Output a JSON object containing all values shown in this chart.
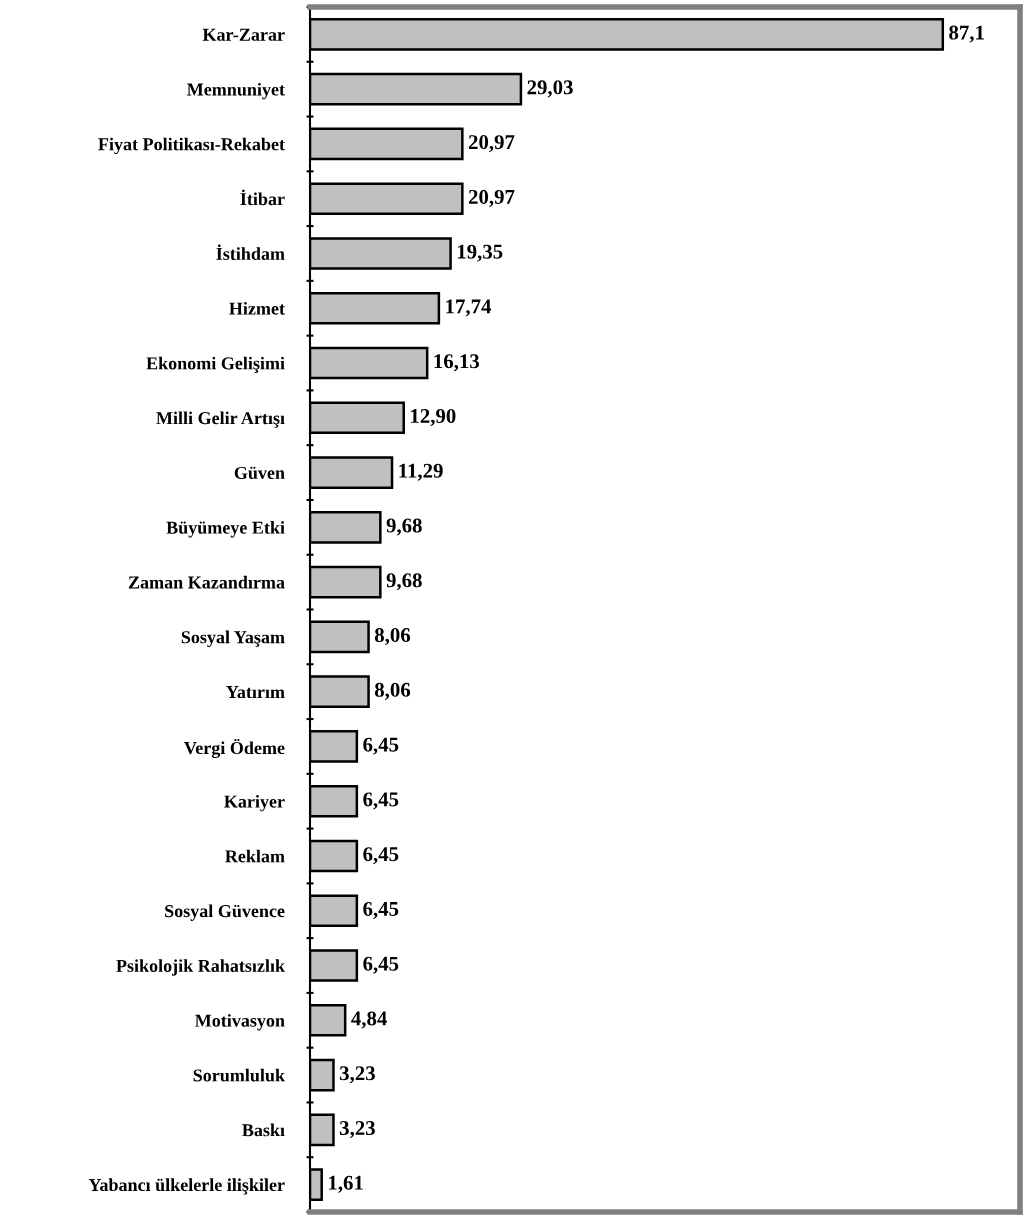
{
  "chart_data": {
    "type": "bar",
    "orientation": "horizontal",
    "categories": [
      "Kar-Zarar",
      "Memnuniyet",
      "Fiyat Politikası-Rekabet",
      "İtibar",
      "İstihdam",
      "Hizmet",
      "Ekonomi Gelişimi",
      "Milli Gelir Artışı",
      "Güven",
      "Büyümeye Etki",
      "Zaman Kazandırma",
      "Sosyal Yaşam",
      "Yatırım",
      "Vergi Ödeme",
      "Kariyer",
      "Reklam",
      "Sosyal Güvence",
      "Psikolojik Rahatsızlık",
      "Motivasyon",
      "Sorumluluk",
      "Baskı",
      "Yabancı ülkelerle ilişkiler"
    ],
    "values": [
      87.1,
      29.03,
      20.97,
      20.97,
      19.35,
      17.74,
      16.13,
      12.9,
      11.29,
      9.68,
      9.68,
      8.06,
      8.06,
      6.45,
      6.45,
      6.45,
      6.45,
      6.45,
      4.84,
      3.23,
      3.23,
      1.61
    ],
    "value_labels": [
      "87,1",
      "29,03",
      "20,97",
      "20,97",
      "19,35",
      "17,74",
      "16,13",
      "12,90",
      "11,29",
      "9,68",
      "9,68",
      "8,06",
      "8,06",
      "6,45",
      "6,45",
      "6,45",
      "6,45",
      "6,45",
      "4,84",
      "3,23",
      "3,23",
      "1,61"
    ],
    "color": "#c0c0c0",
    "grid": false,
    "legend": false
  }
}
